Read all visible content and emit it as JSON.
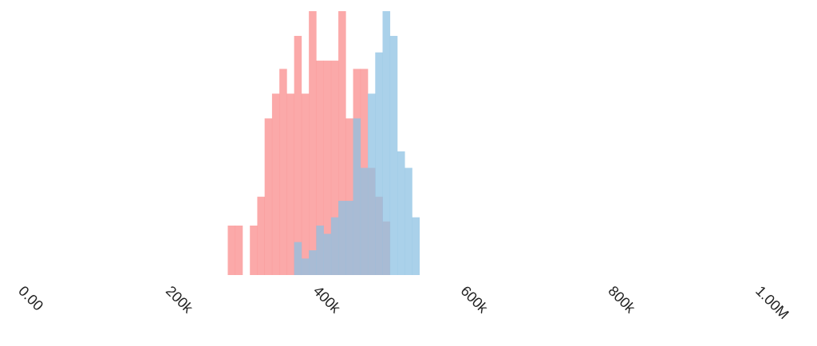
{
  "chart_data": {
    "type": "bar",
    "title": "",
    "xlabel": "",
    "ylabel": "",
    "xlim": [
      0,
      1000000
    ],
    "ylim": [
      0,
      32
    ],
    "bin_width": 10000,
    "grid": false,
    "legend": "none",
    "x_ticks": [
      {
        "value": 0,
        "label": "0.00"
      },
      {
        "value": 200000,
        "label": "200k"
      },
      {
        "value": 400000,
        "label": "400k"
      },
      {
        "value": 600000,
        "label": "600k"
      },
      {
        "value": 800000,
        "label": "800k"
      },
      {
        "value": 1000000,
        "label": "1.00M"
      }
    ],
    "series": [
      {
        "color": "#fa8c8c",
        "opacity": 0.75,
        "bins": [
          {
            "x0": 270000,
            "x1": 280000,
            "count": 6
          },
          {
            "x0": 280000,
            "x1": 290000,
            "count": 6
          },
          {
            "x0": 300000,
            "x1": 310000,
            "count": 6
          },
          {
            "x0": 310000,
            "x1": 320000,
            "count": 9.5
          },
          {
            "x0": 320000,
            "x1": 330000,
            "count": 19
          },
          {
            "x0": 330000,
            "x1": 340000,
            "count": 22
          },
          {
            "x0": 340000,
            "x1": 350000,
            "count": 25
          },
          {
            "x0": 350000,
            "x1": 360000,
            "count": 22
          },
          {
            "x0": 360000,
            "x1": 370000,
            "count": 29
          },
          {
            "x0": 370000,
            "x1": 380000,
            "count": 22
          },
          {
            "x0": 380000,
            "x1": 390000,
            "count": 32
          },
          {
            "x0": 390000,
            "x1": 400000,
            "count": 26
          },
          {
            "x0": 400000,
            "x1": 410000,
            "count": 26
          },
          {
            "x0": 410000,
            "x1": 420000,
            "count": 26
          },
          {
            "x0": 420000,
            "x1": 430000,
            "count": 32
          },
          {
            "x0": 430000,
            "x1": 440000,
            "count": 19
          },
          {
            "x0": 440000,
            "x1": 450000,
            "count": 25
          },
          {
            "x0": 450000,
            "x1": 460000,
            "count": 25
          },
          {
            "x0": 460000,
            "x1": 470000,
            "count": 13
          },
          {
            "x0": 470000,
            "x1": 480000,
            "count": 9.5
          },
          {
            "x0": 480000,
            "x1": 490000,
            "count": 6.5
          }
        ]
      },
      {
        "color": "#8ec1e3",
        "opacity": 0.75,
        "bins": [
          {
            "x0": 360000,
            "x1": 370000,
            "count": 4
          },
          {
            "x0": 370000,
            "x1": 380000,
            "count": 2
          },
          {
            "x0": 380000,
            "x1": 390000,
            "count": 3
          },
          {
            "x0": 390000,
            "x1": 400000,
            "count": 6
          },
          {
            "x0": 400000,
            "x1": 410000,
            "count": 5
          },
          {
            "x0": 410000,
            "x1": 420000,
            "count": 7
          },
          {
            "x0": 420000,
            "x1": 430000,
            "count": 9
          },
          {
            "x0": 430000,
            "x1": 440000,
            "count": 9
          },
          {
            "x0": 440000,
            "x1": 450000,
            "count": 19
          },
          {
            "x0": 450000,
            "x1": 460000,
            "count": 13
          },
          {
            "x0": 460000,
            "x1": 470000,
            "count": 22
          },
          {
            "x0": 470000,
            "x1": 480000,
            "count": 27
          },
          {
            "x0": 480000,
            "x1": 490000,
            "count": 32
          },
          {
            "x0": 490000,
            "x1": 500000,
            "count": 29
          },
          {
            "x0": 500000,
            "x1": 510000,
            "count": 15
          },
          {
            "x0": 510000,
            "x1": 520000,
            "count": 13
          },
          {
            "x0": 520000,
            "x1": 530000,
            "count": 7
          }
        ]
      }
    ]
  }
}
